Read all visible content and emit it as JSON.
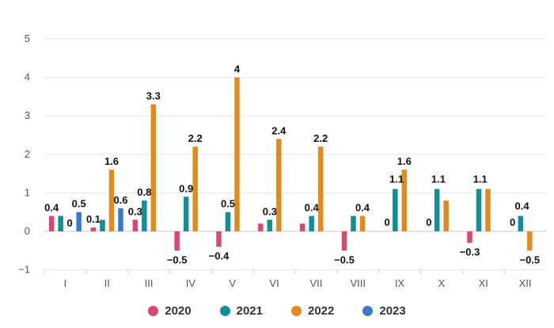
{
  "chart_data": {
    "type": "bar",
    "categories": [
      "I",
      "II",
      "III",
      "IV",
      "V",
      "VI",
      "VII",
      "VIII",
      "IX",
      "X",
      "XI",
      "XII"
    ],
    "ylim": [
      -1,
      5
    ],
    "yticks": [
      "5",
      "4",
      "3",
      "2",
      "1",
      "0",
      "−1"
    ],
    "ytick_values": [
      5,
      4,
      3,
      2,
      1,
      0,
      -1
    ],
    "grid": true,
    "legend_position": "bottom",
    "series": [
      {
        "name": "2020",
        "color": "#d54a6e",
        "values": [
          0.4,
          0.1,
          0.3,
          -0.5,
          -0.4,
          0.2,
          0.2,
          -0.5,
          null,
          null,
          -0.3,
          null
        ],
        "labels": [
          "0.4",
          "0.1",
          "0.3",
          "−0.5",
          "−0.4",
          "",
          "",
          "−0.5",
          "",
          "",
          "−0.3",
          ""
        ]
      },
      {
        "name": "2021",
        "color": "#138d96",
        "values": [
          0.4,
          0.3,
          0.8,
          0.9,
          0.5,
          0.3,
          0.4,
          0.4,
          1.1,
          1.1,
          1.1,
          0.4
        ],
        "labels": [
          "",
          "",
          "0.8",
          "0.9",
          "0.5",
          "0.3",
          "0.4",
          "",
          "",
          "",
          "",
          ""
        ]
      },
      {
        "name": "2022",
        "color": "#e08b1e",
        "values": [
          0,
          1.6,
          3.3,
          2.2,
          4,
          2.4,
          2.2,
          0.4,
          1.6,
          0.8,
          1.1,
          -0.5
        ],
        "labels": [
          "0",
          "1.6",
          "3.3",
          "2.2",
          "4",
          "2.4",
          "2.2",
          "0.4",
          "1.6",
          "",
          "",
          "−0.5"
        ]
      },
      {
        "name": "2023",
        "color": "#3a7bc9",
        "values": [
          0.5,
          0.6,
          null,
          null,
          null,
          null,
          null,
          null,
          null,
          null,
          null,
          null
        ],
        "labels": [
          "0.5",
          "0.6",
          "",
          "",
          "",
          "",
          "",
          "",
          "",
          "",
          "",
          ""
        ]
      }
    ],
    "extra_labels": [
      {
        "month": 8,
        "text": "1.1",
        "value": 1.1
      },
      {
        "month": 8,
        "text": "0",
        "value": 0
      },
      {
        "month": 9,
        "text": "1.1",
        "value": 1.1
      },
      {
        "month": 9,
        "text": "0",
        "value": 0
      },
      {
        "month": 10,
        "text": "1.1",
        "value": 1.1
      },
      {
        "month": 11,
        "text": "0.4",
        "value": 0.4
      },
      {
        "month": 11,
        "text": "0",
        "value": 0
      }
    ]
  },
  "legend": [
    {
      "label": "2020",
      "color": "#d54a6e"
    },
    {
      "label": "2021",
      "color": "#138d96"
    },
    {
      "label": "2022",
      "color": "#e08b1e"
    },
    {
      "label": "2023",
      "color": "#3a7bc9"
    }
  ]
}
